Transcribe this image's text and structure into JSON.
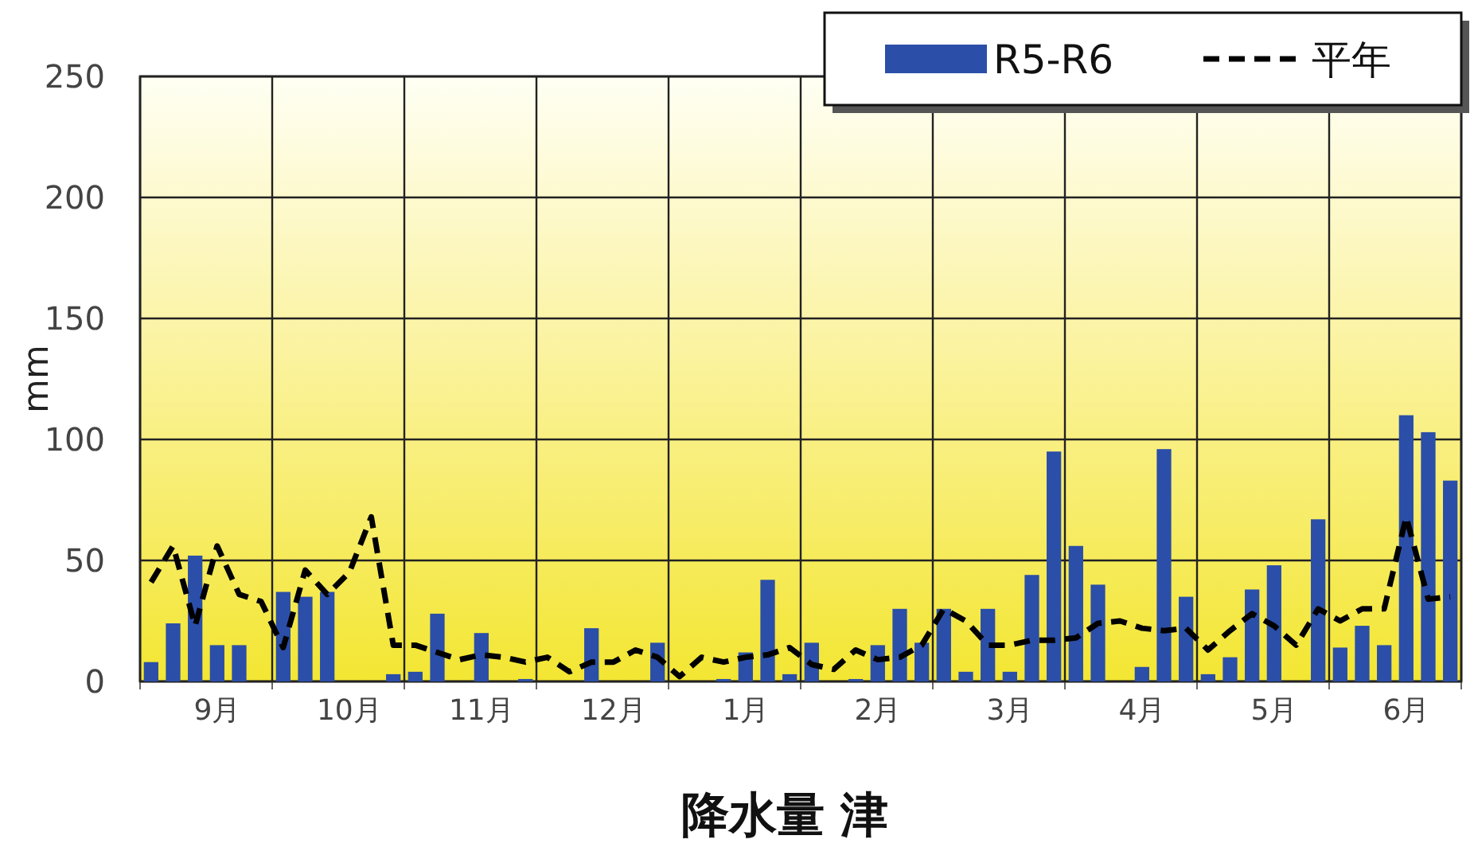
{
  "chart_data": {
    "type": "bar",
    "title": "降水量 津",
    "ylabel": "mm",
    "categories": [
      null,
      null,
      null,
      "9月",
      null,
      null,
      null,
      null,
      null,
      "10月",
      null,
      null,
      null,
      null,
      null,
      "11月",
      null,
      null,
      null,
      null,
      null,
      "12月",
      null,
      null,
      null,
      null,
      null,
      "1月",
      null,
      null,
      null,
      null,
      null,
      "2月",
      null,
      null,
      null,
      null,
      null,
      "3月",
      null,
      null,
      null,
      null,
      null,
      "4月",
      null,
      null,
      null,
      null,
      null,
      "5月",
      null,
      null,
      null,
      null,
      null,
      "6月",
      null,
      null
    ],
    "ylim": [
      0,
      250
    ],
    "yticks": [
      0,
      50,
      100,
      150,
      200,
      250
    ],
    "grid": true,
    "legend": "top right",
    "series": [
      {
        "name": "R5-R6",
        "color": "#2b4ea8",
        "values": [
          8,
          24,
          52,
          15,
          15,
          0,
          37,
          35,
          37,
          0,
          0,
          3,
          4,
          28,
          0,
          20,
          0,
          1,
          0,
          0,
          22,
          0,
          0,
          16,
          0,
          0,
          1,
          12,
          42,
          3,
          16,
          0,
          1,
          15,
          30,
          16,
          30,
          4,
          30,
          4,
          44,
          95,
          56,
          40,
          0,
          6,
          96,
          35,
          3,
          10,
          38,
          48,
          0,
          67,
          14,
          23,
          15,
          110,
          103,
          83
        ]
      },
      {
        "name": "平年",
        "type": "line",
        "color": "#000000",
        "line_style": "dashed",
        "values": [
          41,
          56,
          23,
          56,
          36,
          33,
          14,
          46,
          36,
          45,
          68,
          15,
          15,
          12,
          9,
          11,
          10,
          8,
          10,
          4,
          8,
          8,
          13,
          10,
          2,
          10,
          8,
          10,
          11,
          14,
          7,
          5,
          13,
          9,
          10,
          15,
          30,
          25,
          15,
          15,
          17,
          17,
          18,
          24,
          25,
          22,
          21,
          22,
          13,
          21,
          28,
          23,
          15,
          30,
          25,
          30,
          30,
          68,
          34,
          35
        ]
      }
    ]
  }
}
